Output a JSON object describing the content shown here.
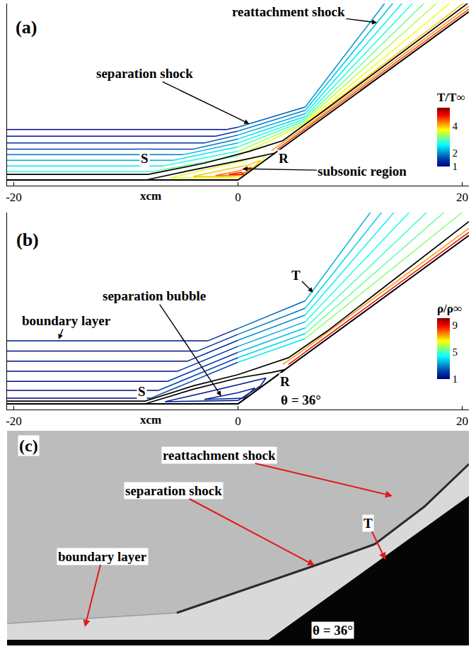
{
  "chart_data": [
    {
      "type": "contour_lines",
      "panel_label": "(a)",
      "xlim": [
        -20.6,
        20.6
      ],
      "ylim": [
        -0.5,
        15.7
      ],
      "xticks": [
        -20,
        0,
        20
      ],
      "tick_labels": "x",
      "xlabel": "xcm",
      "colorbar": {
        "title": "T/T∞",
        "range": [
          1,
          5.4
        ],
        "ticks": [
          1,
          2,
          4
        ]
      },
      "annotations": {
        "separation_shock": "separation shock",
        "reattachment_shock": "reattachment shock",
        "subsonic_region": "subsonic region",
        "S": "S",
        "R": "R"
      },
      "wall": {
        "x": [
          -20.6,
          0,
          20.6
        ],
        "y": [
          0,
          0,
          14.97
        ]
      },
      "contours": [
        {
          "x": [
            -20.6,
            -1.0,
            0,
            6,
            20.6
          ],
          "y": [
            4.5,
            4.5,
            4.7,
            6.5,
            25.5
          ],
          "values": [
            1.1,
            1.1,
            1.6,
            1.9,
            2.2
          ]
        },
        {
          "x": [
            -20.6,
            -2.0,
            0,
            6,
            20.6
          ],
          "y": [
            3.9,
            3.9,
            4.35,
            6.2,
            24.0
          ],
          "values": [
            1.2,
            1.2,
            1.8,
            2.1,
            2.5
          ]
        },
        {
          "x": [
            -20.6,
            -3.0,
            0,
            6,
            20.6
          ],
          "y": [
            3.3,
            3.3,
            4.0,
            5.9,
            22.5
          ],
          "values": [
            1.4,
            1.4,
            2.0,
            2.3,
            2.8
          ]
        },
        {
          "x": [
            -20.6,
            -4.0,
            0,
            6,
            20.6
          ],
          "y": [
            2.75,
            2.75,
            3.65,
            5.65,
            21.0
          ],
          "values": [
            1.6,
            1.6,
            2.2,
            2.6,
            3.0
          ]
        },
        {
          "x": [
            -20.6,
            -4.9,
            0,
            6,
            20.6
          ],
          "y": [
            2.25,
            2.25,
            3.3,
            5.45,
            19.6
          ],
          "values": [
            1.9,
            1.9,
            2.5,
            2.9,
            3.3
          ]
        },
        {
          "x": [
            -20.6,
            -5.8,
            0,
            6,
            20.6
          ],
          "y": [
            1.75,
            1.75,
            2.95,
            5.28,
            18.3
          ],
          "values": [
            2.2,
            2.2,
            2.8,
            3.2,
            3.6
          ]
        },
        {
          "x": [
            -20.6,
            -6.7,
            0,
            6,
            20.6
          ],
          "y": [
            1.25,
            1.25,
            2.55,
            5.12,
            17.1
          ],
          "values": [
            2.5,
            2.5,
            3.1,
            3.5,
            3.9
          ]
        },
        {
          "x": [
            -20.6,
            -7.6,
            0,
            6,
            20.6
          ],
          "y": [
            0.75,
            0.75,
            2.15,
            5.0,
            16.1
          ],
          "values": [
            2.8,
            2.8,
            3.4,
            3.8,
            4.2
          ]
        },
        {
          "x": [
            3,
            6,
            20.6
          ],
          "y": [
            2.63,
            4.71,
            15.47
          ],
          "values": [
            4.2,
            4.2,
            4.2
          ]
        },
        {
          "x": [
            3.5,
            6,
            20.6
          ],
          "y": [
            2.74,
            4.55,
            15.2
          ],
          "values": [
            4.6,
            4.6,
            4.6
          ]
        },
        {
          "x": [
            -6,
            -3,
            0,
            2.4,
            2.2,
            0.5,
            0,
            -6
          ],
          "y": [
            0.2,
            0.9,
            1.6,
            2.2,
            1.8,
            0.5,
            0.2,
            0.2
          ],
          "values": [
            3.6,
            3.6,
            3.6,
            3.6,
            3.6,
            3.6,
            3.6,
            3.6
          ]
        },
        {
          "x": [
            -4,
            -1.5,
            1,
            2.0,
            1.6,
            0.4,
            -0.5,
            -4
          ],
          "y": [
            0.3,
            0.85,
            1.35,
            1.75,
            1.3,
            0.45,
            0.3,
            0.3
          ],
          "values": [
            4.0,
            4.0,
            4.0,
            4.0,
            4.0,
            4.0,
            4.0,
            4.0
          ]
        },
        {
          "x": [
            -2,
            0,
            1.2,
            0.8,
            0,
            -2
          ],
          "y": [
            0.4,
            0.8,
            1.15,
            0.75,
            0.45,
            0.4
          ],
          "values": [
            4.4,
            4.4,
            4.4,
            4.4,
            4.4,
            4.4
          ]
        },
        {
          "x": [
            -0.8,
            0.3,
            0.5,
            -0.8
          ],
          "y": [
            0.5,
            0.7,
            0.5,
            0.5
          ],
          "values": [
            4.8,
            4.8,
            4.8,
            4.8
          ]
        }
      ],
      "streamlines": [
        {
          "x": [
            -20.6,
            -8,
            -3,
            1,
            4,
            8,
            20.6
          ],
          "y": [
            0.5,
            0.5,
            1.5,
            2.55,
            3.5,
            6.4,
            15.8
          ]
        },
        {
          "x": [
            -8,
            -4.5,
            0,
            3.3
          ],
          "y": [
            0.05,
            0.8,
            1.7,
            2.4
          ]
        }
      ]
    },
    {
      "type": "contour_lines",
      "panel_label": "(b)",
      "xlim": [
        -20.6,
        20.6
      ],
      "ylim": [
        -0.5,
        17.0
      ],
      "xticks": [
        -20,
        0,
        20
      ],
      "tick_labels": "x",
      "xlabel": "xcm",
      "colorbar": {
        "title": "ρ/ρ∞",
        "range": [
          1,
          10
        ],
        "ticks": [
          1,
          5,
          9
        ]
      },
      "annotations": {
        "boundary_layer": "boundary layer",
        "separation_bubble": "separation bubble",
        "T": "T",
        "S": "S",
        "R": "R",
        "theta": "θ = 36°"
      },
      "wall": {
        "x": [
          -20.6,
          0,
          20.6
        ],
        "y": [
          0,
          0,
          14.97
        ]
      },
      "contours": [
        {
          "x": [
            -20.6,
            -2.7,
            0,
            6,
            20.6
          ],
          "y": [
            5.6,
            5.6,
            6.7,
            9.16,
            28.9
          ],
          "values": [
            1.3,
            1.3,
            2.2,
            3.0,
            4.0
          ]
        },
        {
          "x": [
            -20.6,
            -3.6,
            0,
            6,
            20.6
          ],
          "y": [
            4.7,
            4.7,
            6.18,
            8.5,
            26.75
          ],
          "values": [
            1.3,
            1.3,
            2.4,
            3.3,
            4.4
          ]
        },
        {
          "x": [
            -20.6,
            -4.5,
            0,
            6,
            20.6
          ],
          "y": [
            3.8,
            3.8,
            5.65,
            7.9,
            24.7
          ],
          "values": [
            1.2,
            1.2,
            2.6,
            3.6,
            4.8
          ]
        },
        {
          "x": [
            -20.6,
            -5.4,
            0,
            6,
            20.6
          ],
          "y": [
            2.9,
            2.9,
            5.11,
            7.3,
            22.6
          ],
          "values": [
            1.2,
            1.2,
            2.8,
            3.9,
            5.2
          ]
        },
        {
          "x": [
            -20.6,
            -6.3,
            0,
            6,
            20.6
          ],
          "y": [
            2.0,
            2.0,
            4.58,
            6.75,
            20.6
          ],
          "values": [
            1.1,
            1.1,
            3.0,
            4.2,
            5.6
          ]
        },
        {
          "x": [
            -20.6,
            -7.1,
            0,
            6,
            20.6
          ],
          "y": [
            1.2,
            1.2,
            4.11,
            6.25,
            18.95
          ],
          "values": [
            1.1,
            1.1,
            3.2,
            4.5,
            6.0
          ]
        },
        {
          "x": [
            -20.6,
            -7.8,
            0,
            6,
            20.6
          ],
          "y": [
            0.5,
            0.5,
            3.7,
            5.8,
            17.5
          ],
          "values": [
            1.0,
            1.0,
            3.4,
            4.8,
            6.4
          ]
        },
        {
          "x": [
            4,
            6,
            20.6
          ],
          "y": [
            3.51,
            4.91,
            15.6
          ],
          "values": [
            7.5,
            7.5,
            7.5
          ]
        },
        {
          "x": [
            4.5,
            6,
            20.6
          ],
          "y": [
            3.5,
            4.6,
            15.25
          ],
          "values": [
            9,
            9,
            9
          ]
        },
        {
          "x": [
            -6.5,
            -3,
            0,
            2.5,
            2.0,
            0,
            -6.5
          ],
          "y": [
            0.2,
            1.0,
            1.7,
            2.3,
            1.6,
            0.3,
            0.2
          ],
          "values": [
            1.3,
            1.3,
            1.3,
            1.3,
            1.3,
            1.3,
            1.3
          ]
        },
        {
          "x": [
            -3,
            0,
            1.5,
            0.5,
            -3
          ],
          "y": [
            0.4,
            1.0,
            1.4,
            0.5,
            0.4
          ],
          "values": [
            1.6,
            1.6,
            1.6,
            1.6,
            1.6
          ]
        }
      ],
      "streamlines": [
        {
          "x": [
            -20.6,
            -8.3,
            -4,
            0,
            4.5,
            8,
            20.6
          ],
          "y": [
            0.25,
            0.25,
            1.6,
            2.6,
            4.1,
            6.5,
            16.2
          ]
        },
        {
          "x": [
            -8.3,
            -4,
            0,
            3,
            4.2,
            0,
            -8.3
          ],
          "y": [
            0,
            1.3,
            2.3,
            2.8,
            3.05,
            0,
            0
          ]
        }
      ]
    },
    {
      "type": "schlieren_image",
      "panel_label": "(c)",
      "annotations": {
        "reattachment_shock": "reattachment shock",
        "separation_shock": "separation shock",
        "T": "T",
        "boundary_layer": "boundary layer",
        "theta": "θ = 36°"
      }
    }
  ]
}
